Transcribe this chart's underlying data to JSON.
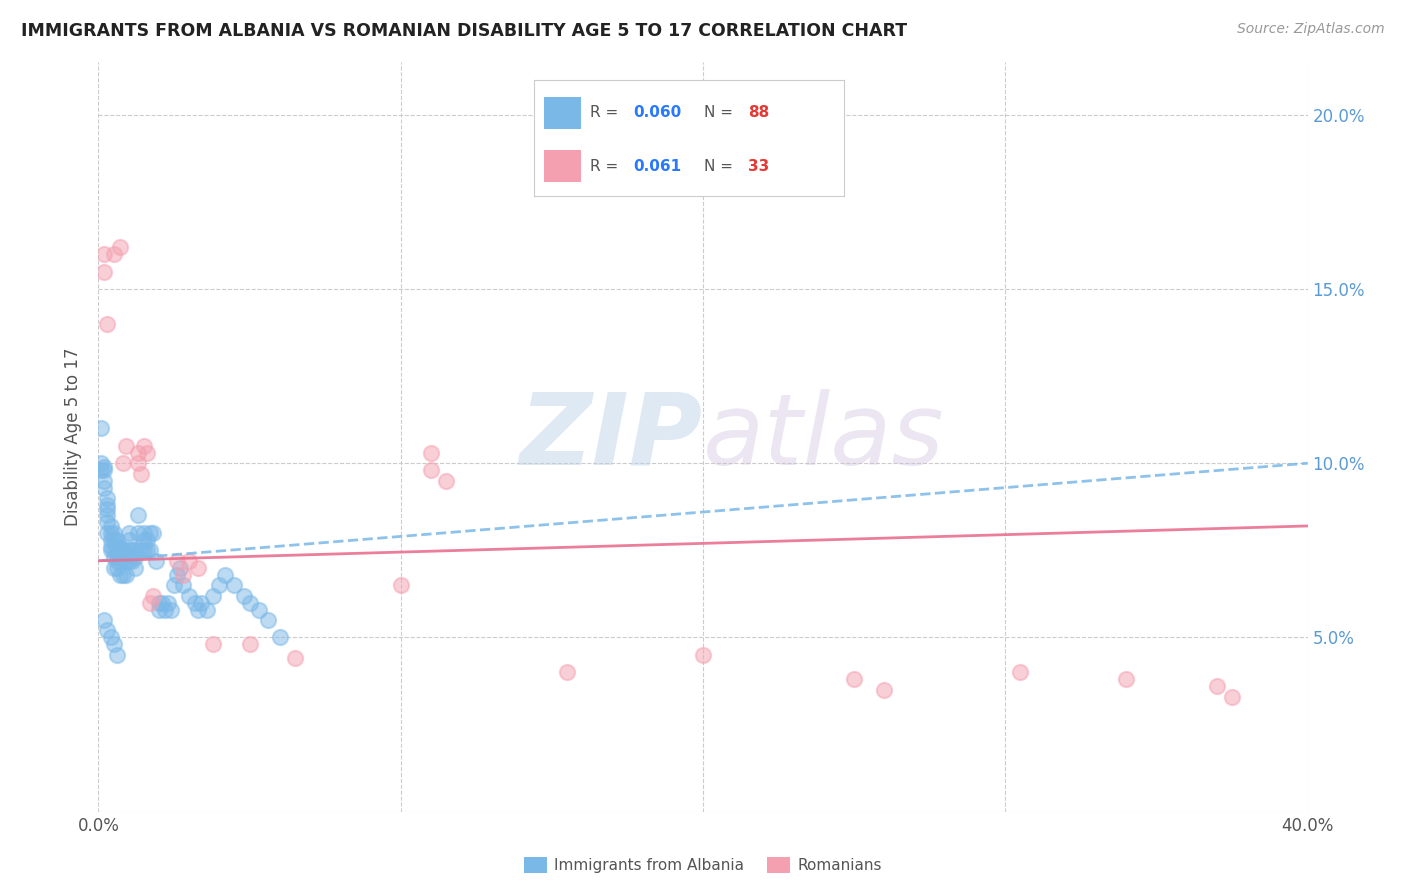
{
  "title": "IMMIGRANTS FROM ALBANIA VS ROMANIAN DISABILITY AGE 5 TO 17 CORRELATION CHART",
  "source": "Source: ZipAtlas.com",
  "ylabel": "Disability Age 5 to 17",
  "xlim": [
    0.0,
    0.4
  ],
  "ylim": [
    0.0,
    0.215
  ],
  "xticks": [
    0.0,
    0.1,
    0.2,
    0.3,
    0.4
  ],
  "yticks": [
    0.0,
    0.05,
    0.1,
    0.15,
    0.2
  ],
  "albania_color": "#7ab8e8",
  "romanian_color": "#f4a0b0",
  "legend_R_albania": "0.060",
  "legend_N_albania": "88",
  "legend_R_romanian": "0.061",
  "legend_N_romanian": "33",
  "albania_x": [
    0.001,
    0.001,
    0.001,
    0.002,
    0.002,
    0.002,
    0.002,
    0.003,
    0.003,
    0.003,
    0.003,
    0.003,
    0.003,
    0.004,
    0.004,
    0.004,
    0.004,
    0.004,
    0.005,
    0.005,
    0.005,
    0.005,
    0.005,
    0.006,
    0.006,
    0.006,
    0.006,
    0.006,
    0.007,
    0.007,
    0.007,
    0.007,
    0.008,
    0.008,
    0.008,
    0.009,
    0.009,
    0.009,
    0.01,
    0.01,
    0.01,
    0.01,
    0.011,
    0.011,
    0.012,
    0.012,
    0.012,
    0.013,
    0.013,
    0.014,
    0.015,
    0.015,
    0.015,
    0.016,
    0.016,
    0.017,
    0.017,
    0.018,
    0.019,
    0.02,
    0.02,
    0.021,
    0.022,
    0.023,
    0.024,
    0.025,
    0.026,
    0.027,
    0.028,
    0.03,
    0.032,
    0.033,
    0.034,
    0.036,
    0.038,
    0.04,
    0.042,
    0.045,
    0.048,
    0.05,
    0.053,
    0.056,
    0.06,
    0.002,
    0.003,
    0.004,
    0.005,
    0.006
  ],
  "albania_y": [
    0.11,
    0.1,
    0.098,
    0.099,
    0.098,
    0.095,
    0.093,
    0.09,
    0.088,
    0.087,
    0.085,
    0.083,
    0.08,
    0.082,
    0.08,
    0.078,
    0.076,
    0.075,
    0.08,
    0.078,
    0.075,
    0.073,
    0.07,
    0.078,
    0.076,
    0.074,
    0.072,
    0.07,
    0.076,
    0.074,
    0.072,
    0.068,
    0.075,
    0.073,
    0.068,
    0.074,
    0.072,
    0.068,
    0.08,
    0.078,
    0.075,
    0.072,
    0.075,
    0.072,
    0.075,
    0.073,
    0.07,
    0.085,
    0.08,
    0.075,
    0.08,
    0.078,
    0.075,
    0.078,
    0.075,
    0.08,
    0.075,
    0.08,
    0.072,
    0.06,
    0.058,
    0.06,
    0.058,
    0.06,
    0.058,
    0.065,
    0.068,
    0.07,
    0.065,
    0.062,
    0.06,
    0.058,
    0.06,
    0.058,
    0.062,
    0.065,
    0.068,
    0.065,
    0.062,
    0.06,
    0.058,
    0.055,
    0.05,
    0.055,
    0.052,
    0.05,
    0.048,
    0.045
  ],
  "romanian_x": [
    0.002,
    0.002,
    0.003,
    0.005,
    0.007,
    0.008,
    0.009,
    0.013,
    0.013,
    0.014,
    0.015,
    0.016,
    0.017,
    0.018,
    0.026,
    0.028,
    0.03,
    0.033,
    0.038,
    0.05,
    0.065,
    0.1,
    0.11,
    0.11,
    0.115,
    0.155,
    0.2,
    0.25,
    0.26,
    0.305,
    0.34,
    0.37,
    0.375
  ],
  "romanian_y": [
    0.16,
    0.155,
    0.14,
    0.16,
    0.162,
    0.1,
    0.105,
    0.103,
    0.1,
    0.097,
    0.105,
    0.103,
    0.06,
    0.062,
    0.072,
    0.068,
    0.072,
    0.07,
    0.048,
    0.048,
    0.044,
    0.065,
    0.103,
    0.098,
    0.095,
    0.04,
    0.045,
    0.038,
    0.035,
    0.04,
    0.038,
    0.036,
    0.033
  ],
  "albania_trend_x": [
    0.0,
    0.4
  ],
  "albania_trend_y": [
    0.072,
    0.1
  ],
  "romanian_trend_x": [
    0.0,
    0.4
  ],
  "romanian_trend_y": [
    0.072,
    0.082
  ],
  "watermark_zip": "ZIP",
  "watermark_atlas": "atlas",
  "background_color": "#ffffff",
  "grid_color": "#cccccc",
  "title_color": "#222222",
  "axis_label_color": "#555555",
  "right_tick_color": "#5b9bd5",
  "legend_color_R_label": "#555555",
  "legend_color_R_val": "#2979FF",
  "legend_color_N_label": "#555555",
  "legend_color_N_val": "#e53935"
}
